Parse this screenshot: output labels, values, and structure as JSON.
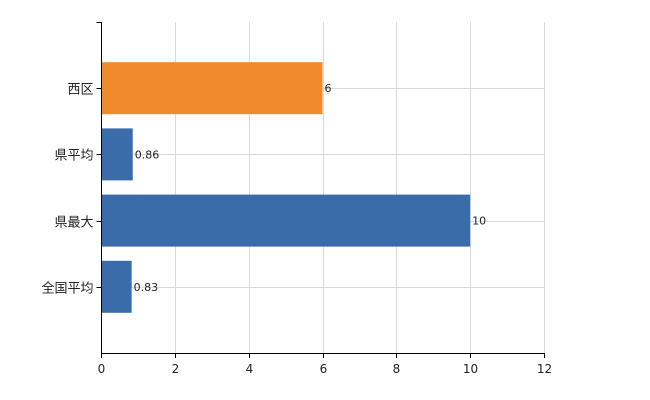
{
  "chart_data": {
    "type": "bar",
    "orientation": "horizontal",
    "categories": [
      "西区",
      "県平均",
      "県最大",
      "全国平均"
    ],
    "values": [
      6,
      0.86,
      10,
      0.83
    ],
    "value_labels": [
      "6",
      "0.86",
      "10",
      "0.83"
    ],
    "bar_colors": [
      "#EF8B2C",
      "#3A6CAA",
      "#3A6CAA",
      "#3A6CAA"
    ],
    "xlim": [
      0,
      12
    ],
    "xticks": [
      0,
      2,
      4,
      6,
      8,
      10,
      12
    ],
    "xtick_labels": [
      "0",
      "2",
      "4",
      "6",
      "8",
      "10",
      "12"
    ],
    "grid": true,
    "title": "",
    "xlabel": "",
    "ylabel": ""
  }
}
